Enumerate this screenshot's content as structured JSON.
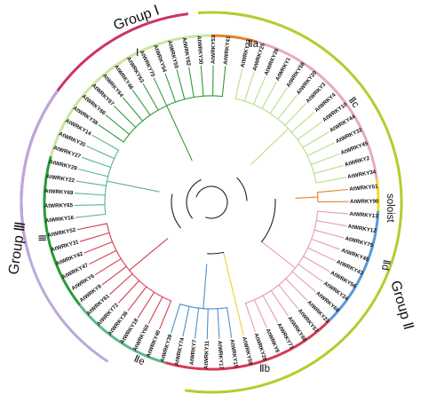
{
  "groups": [
    {
      "id": "g1",
      "label": "Group Ⅰ",
      "color": "#cc3366"
    },
    {
      "id": "g2",
      "label": "Group Ⅱ",
      "color": "#b5cc2e"
    },
    {
      "id": "g3",
      "label": "Group Ⅲ",
      "color": "#bba8dd"
    }
  ],
  "subgroups": [
    {
      "id": "I",
      "label": "Ⅰ",
      "color": "#c9e6a0"
    },
    {
      "id": "IIa",
      "label": "Ⅱa",
      "color": "#e5822a"
    },
    {
      "id": "IIc",
      "label": "Ⅱc",
      "color": "#e8a9c3"
    },
    {
      "id": "solo",
      "label": "soloist",
      "color": "#f2dc2a"
    },
    {
      "id": "IId",
      "label": "Ⅱd",
      "color": "#5a98d8"
    },
    {
      "id": "IIb",
      "label": "Ⅱb",
      "color": "#d63a55"
    },
    {
      "id": "IIe",
      "label": "Ⅱe",
      "color": "#5db88b"
    },
    {
      "id": "III",
      "label": "Ⅲ",
      "color": "#2a9a36"
    }
  ],
  "tree_colors": {
    "I": "#b9df86",
    "IIa": "#e5822a",
    "IIc": "#e69ab9",
    "solo": "#e8d22a",
    "IId": "#4f8fd0",
    "IIb": "#d43a55",
    "IIe": "#5bb58c",
    "III": "#2f9a3c",
    "root": "#222222"
  },
  "leaves": [
    {
      "name": "AtWRKY33",
      "clade": "I"
    },
    {
      "name": "AtWRKY25",
      "clade": "I"
    },
    {
      "name": "AtWRKY26",
      "clade": "I"
    },
    {
      "name": "AtWRKY1",
      "clade": "I"
    },
    {
      "name": "AtWRKY58",
      "clade": "I"
    },
    {
      "name": "AtWRKY20",
      "clade": "I"
    },
    {
      "name": "AtWRKY3",
      "clade": "I"
    },
    {
      "name": "AtWRKY4",
      "clade": "I"
    },
    {
      "name": "AtWRKY10",
      "clade": "I"
    },
    {
      "name": "AtWRKY44",
      "clade": "I"
    },
    {
      "name": "AtWRKY32",
      "clade": "I"
    },
    {
      "name": "AtWRKY45",
      "clade": "I"
    },
    {
      "name": "AtWRKY2",
      "clade": "I"
    },
    {
      "name": "AtWRKY34",
      "clade": "I"
    },
    {
      "name": "AtWRKY51",
      "clade": "IIa"
    },
    {
      "name": "AtWRKY90",
      "clade": "IIa"
    },
    {
      "name": "AtWRKY13",
      "clade": "IIc"
    },
    {
      "name": "AtWRKY12",
      "clade": "IIc"
    },
    {
      "name": "AtWRKY75",
      "clade": "IIc"
    },
    {
      "name": "AtWRKY45",
      "clade": "IIc"
    },
    {
      "name": "AtWRKY43",
      "clade": "IIc"
    },
    {
      "name": "AtWRKY56",
      "clade": "IIc"
    },
    {
      "name": "AtWRKY24",
      "clade": "IIc"
    },
    {
      "name": "AtWRKY68",
      "clade": "IIc"
    },
    {
      "name": "AtWRKY23",
      "clade": "IIc"
    },
    {
      "name": "AtWRKY57",
      "clade": "IIc"
    },
    {
      "name": "AtWRKY48",
      "clade": "IIc"
    },
    {
      "name": "AtWRKY71",
      "clade": "IIc"
    },
    {
      "name": "AtWRKY8",
      "clade": "IIc"
    },
    {
      "name": "AtWRKY28",
      "clade": "IIc"
    },
    {
      "name": "AtWRKY59",
      "clade": "solo"
    },
    {
      "name": "AtWRKY15",
      "clade": "IId"
    },
    {
      "name": "AtWRKY17",
      "clade": "IId"
    },
    {
      "name": "AtWRKY11",
      "clade": "IId"
    },
    {
      "name": "AtWRKY7",
      "clade": "IId"
    },
    {
      "name": "AtWRKY74",
      "clade": "IId"
    },
    {
      "name": "AtWRKY39",
      "clade": "IId"
    },
    {
      "name": "AtWRKY40",
      "clade": "IIb"
    },
    {
      "name": "AtWRKY60",
      "clade": "IIb"
    },
    {
      "name": "AtWRKY18",
      "clade": "IIb"
    },
    {
      "name": "AtWRKY36",
      "clade": "IIb"
    },
    {
      "name": "AtWRKY72",
      "clade": "IIb"
    },
    {
      "name": "AtWRKY61",
      "clade": "IIb"
    },
    {
      "name": "AtWRKY9",
      "clade": "IIb"
    },
    {
      "name": "AtWRKY6",
      "clade": "IIb"
    },
    {
      "name": "AtWRKY47",
      "clade": "IIb"
    },
    {
      "name": "AtWRKY42",
      "clade": "IIb"
    },
    {
      "name": "AtWRKY31",
      "clade": "IIb"
    },
    {
      "name": "AtWRKY52",
      "clade": "IIb"
    },
    {
      "name": "AtWRKY16",
      "clade": "IIe"
    },
    {
      "name": "AtWRKY65",
      "clade": "IIe"
    },
    {
      "name": "AtWRKY69",
      "clade": "IIe"
    },
    {
      "name": "AtWRKY22",
      "clade": "IIe"
    },
    {
      "name": "AtWRKY29",
      "clade": "IIe"
    },
    {
      "name": "AtWRKY27",
      "clade": "IIe"
    },
    {
      "name": "AtWRKY35",
      "clade": "IIe"
    },
    {
      "name": "AtWRKY14",
      "clade": "IIe"
    },
    {
      "name": "AtWRKY38",
      "clade": "III"
    },
    {
      "name": "AtWRKY66",
      "clade": "III"
    },
    {
      "name": "AtWRKY67",
      "clade": "III"
    },
    {
      "name": "AtWRKY64",
      "clade": "III"
    },
    {
      "name": "AtWRKY46",
      "clade": "III"
    },
    {
      "name": "AtWRKY63",
      "clade": "III"
    },
    {
      "name": "AtWRKY70",
      "clade": "III"
    },
    {
      "name": "AtWRKY54",
      "clade": "III"
    },
    {
      "name": "AtWRKY55",
      "clade": "III"
    },
    {
      "name": "AtWRKY62",
      "clade": "III"
    },
    {
      "name": "AtWRKY30",
      "clade": "III"
    },
    {
      "name": "AtWRKY53",
      "clade": "III"
    },
    {
      "name": "AtWRKY41",
      "clade": "III"
    }
  ]
}
